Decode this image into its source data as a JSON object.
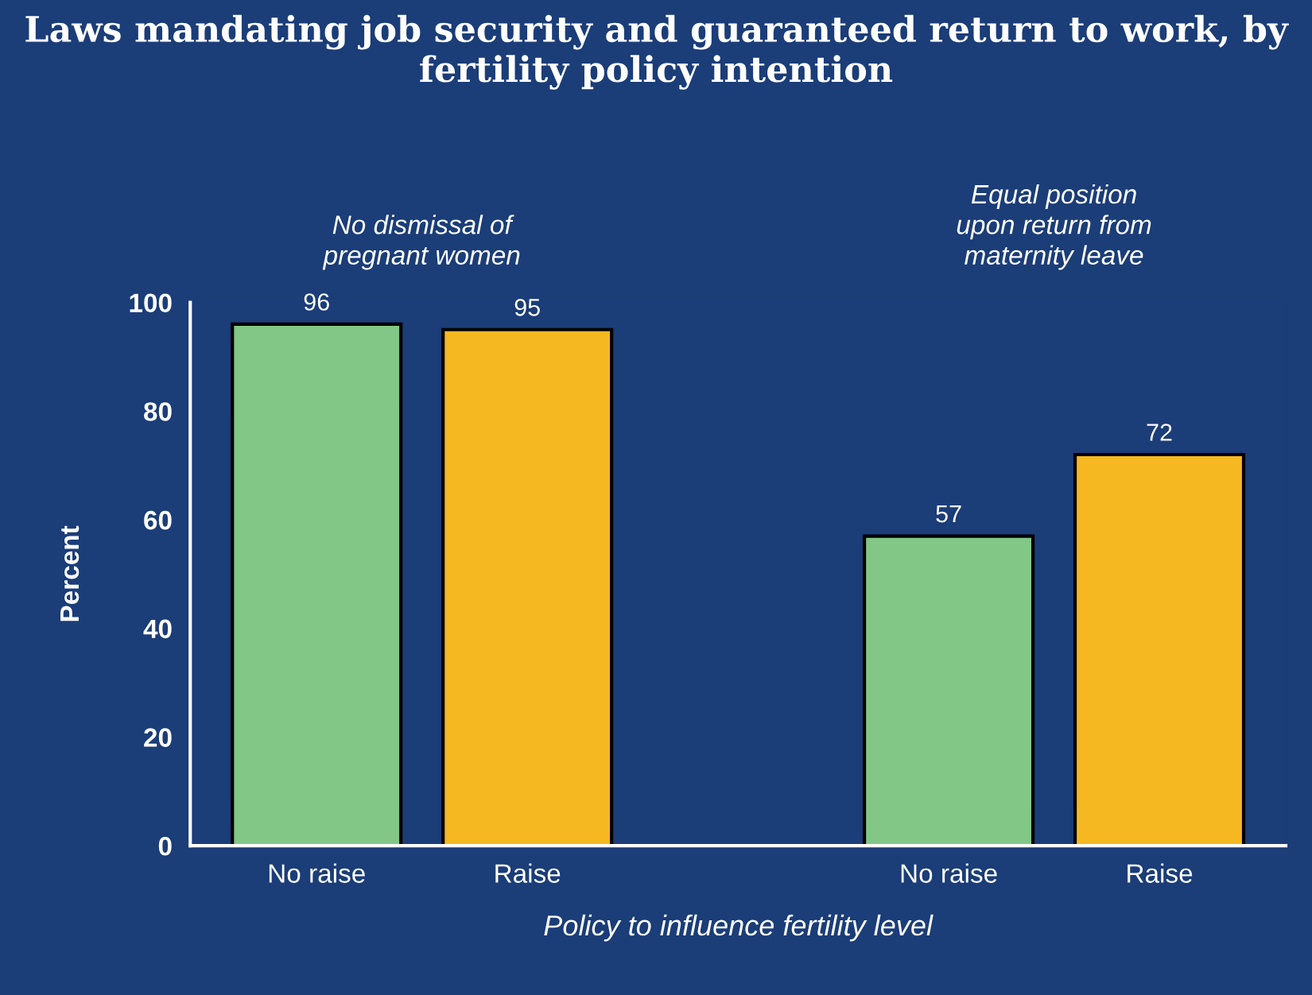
{
  "chart_data": {
    "type": "bar",
    "title": "Laws mandating job security and guaranteed return to work, by fertility policy intention",
    "categories": [
      "No raise",
      "Raise",
      null,
      "No raise",
      "Raise"
    ],
    "values": [
      96,
      95,
      null,
      57,
      72
    ],
    "colors": [
      "#82c785",
      "#f5b820",
      "#82c785",
      "#82c785",
      "#f5b820"
    ],
    "xlabel": "Policy to influence fertility level",
    "ylabel": "Percent",
    "ylim": [
      0,
      100
    ],
    "yticks": [
      0,
      20,
      40,
      60,
      80,
      100
    ],
    "grid": false,
    "legend": false,
    "data_labels": true,
    "annotations": [
      "No dismissal of\npregnant women",
      "Equal position\nupon return from\nmaternity leave"
    ]
  }
}
